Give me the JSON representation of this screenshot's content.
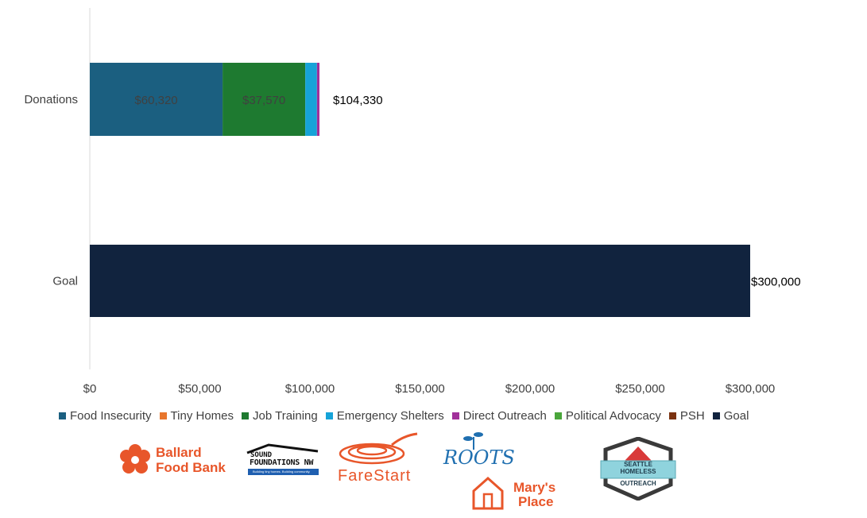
{
  "chart_data": {
    "type": "bar",
    "orientation": "horizontal",
    "stacked": true,
    "categories": [
      "Donations",
      "Goal"
    ],
    "series": [
      {
        "name": "Food Insecurity",
        "color": "#1b5f80",
        "values": [
          60320,
          0
        ],
        "label": "$60,320"
      },
      {
        "name": "Tiny Homes",
        "color": "#e8762d",
        "values": [
          0,
          0
        ],
        "label": ""
      },
      {
        "name": "Job Training",
        "color": "#1e7a30",
        "values": [
          37570,
          0
        ],
        "label": "$37,570"
      },
      {
        "name": "Emergency Shelters",
        "color": "#16a3d8",
        "values": [
          5300,
          0
        ],
        "label": ""
      },
      {
        "name": "Direct Outreach",
        "color": "#a1319a",
        "values": [
          1140,
          0
        ],
        "label": ""
      },
      {
        "name": "Political Advocacy",
        "color": "#4aa63b",
        "values": [
          0,
          0
        ],
        "label": ""
      },
      {
        "name": "PSH",
        "color": "#7b3210",
        "values": [
          0,
          0
        ],
        "label": ""
      },
      {
        "name": "Goal",
        "color": "#11233e",
        "values": [
          0,
          300000
        ],
        "label": ""
      }
    ],
    "totals": [
      "$104,330",
      "$300,000"
    ],
    "xlim": [
      0,
      300000
    ],
    "xticks": [
      0,
      50000,
      100000,
      150000,
      200000,
      250000,
      300000
    ],
    "xtick_labels": [
      "$0",
      "$50,000",
      "$100,000",
      "$150,000",
      "$200,000",
      "$250,000",
      "$300,000"
    ],
    "legend": [
      "Food Insecurity",
      "Tiny Homes",
      "Job Training",
      "Emergency Shelters",
      "Direct Outreach",
      "Political Advocacy",
      "PSH",
      "Goal"
    ],
    "legend_position": "bottom",
    "grid": false
  },
  "logos": {
    "ballard": {
      "line1": "Ballard",
      "line2": "Food Bank"
    },
    "sound": {
      "line1": "SOUND",
      "line2": "FOUNDATIONS NW",
      "tagline": "Building tiny homes. Building community."
    },
    "farestart": {
      "text": "FareStart"
    },
    "roots": {
      "text": "ROOTS"
    },
    "marys": {
      "line1": "Mary's",
      "line2": "Place"
    },
    "seattle": {
      "line1": "SEATTLE",
      "line2": "HOMELESS",
      "line3": "OUTREACH"
    }
  }
}
